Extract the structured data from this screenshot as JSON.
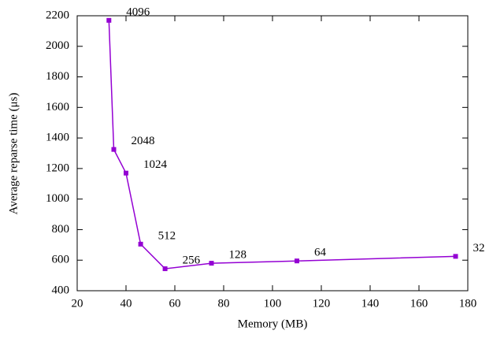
{
  "chart_data": {
    "type": "line",
    "x_label": "Memory (MB)",
    "y_label": "Average reparse time (μs)",
    "series": [
      {
        "color": "#9400d3",
        "x": [
          33,
          35,
          40,
          46,
          56,
          75,
          110,
          175
        ],
        "values": [
          2170,
          1325,
          1170,
          705,
          544,
          580,
          595,
          625
        ],
        "point_labels": [
          "4096",
          "2048",
          "1024",
          "512",
          "256",
          "128",
          "64",
          "32"
        ]
      }
    ],
    "xlim": [
      20,
      180
    ],
    "xticks": [
      20,
      40,
      60,
      80,
      100,
      120,
      140,
      160,
      180
    ],
    "ylim": [
      400,
      2200
    ],
    "yticks": [
      400,
      600,
      800,
      1000,
      1200,
      1400,
      1600,
      1800,
      2000,
      2200
    ],
    "grid": false
  }
}
